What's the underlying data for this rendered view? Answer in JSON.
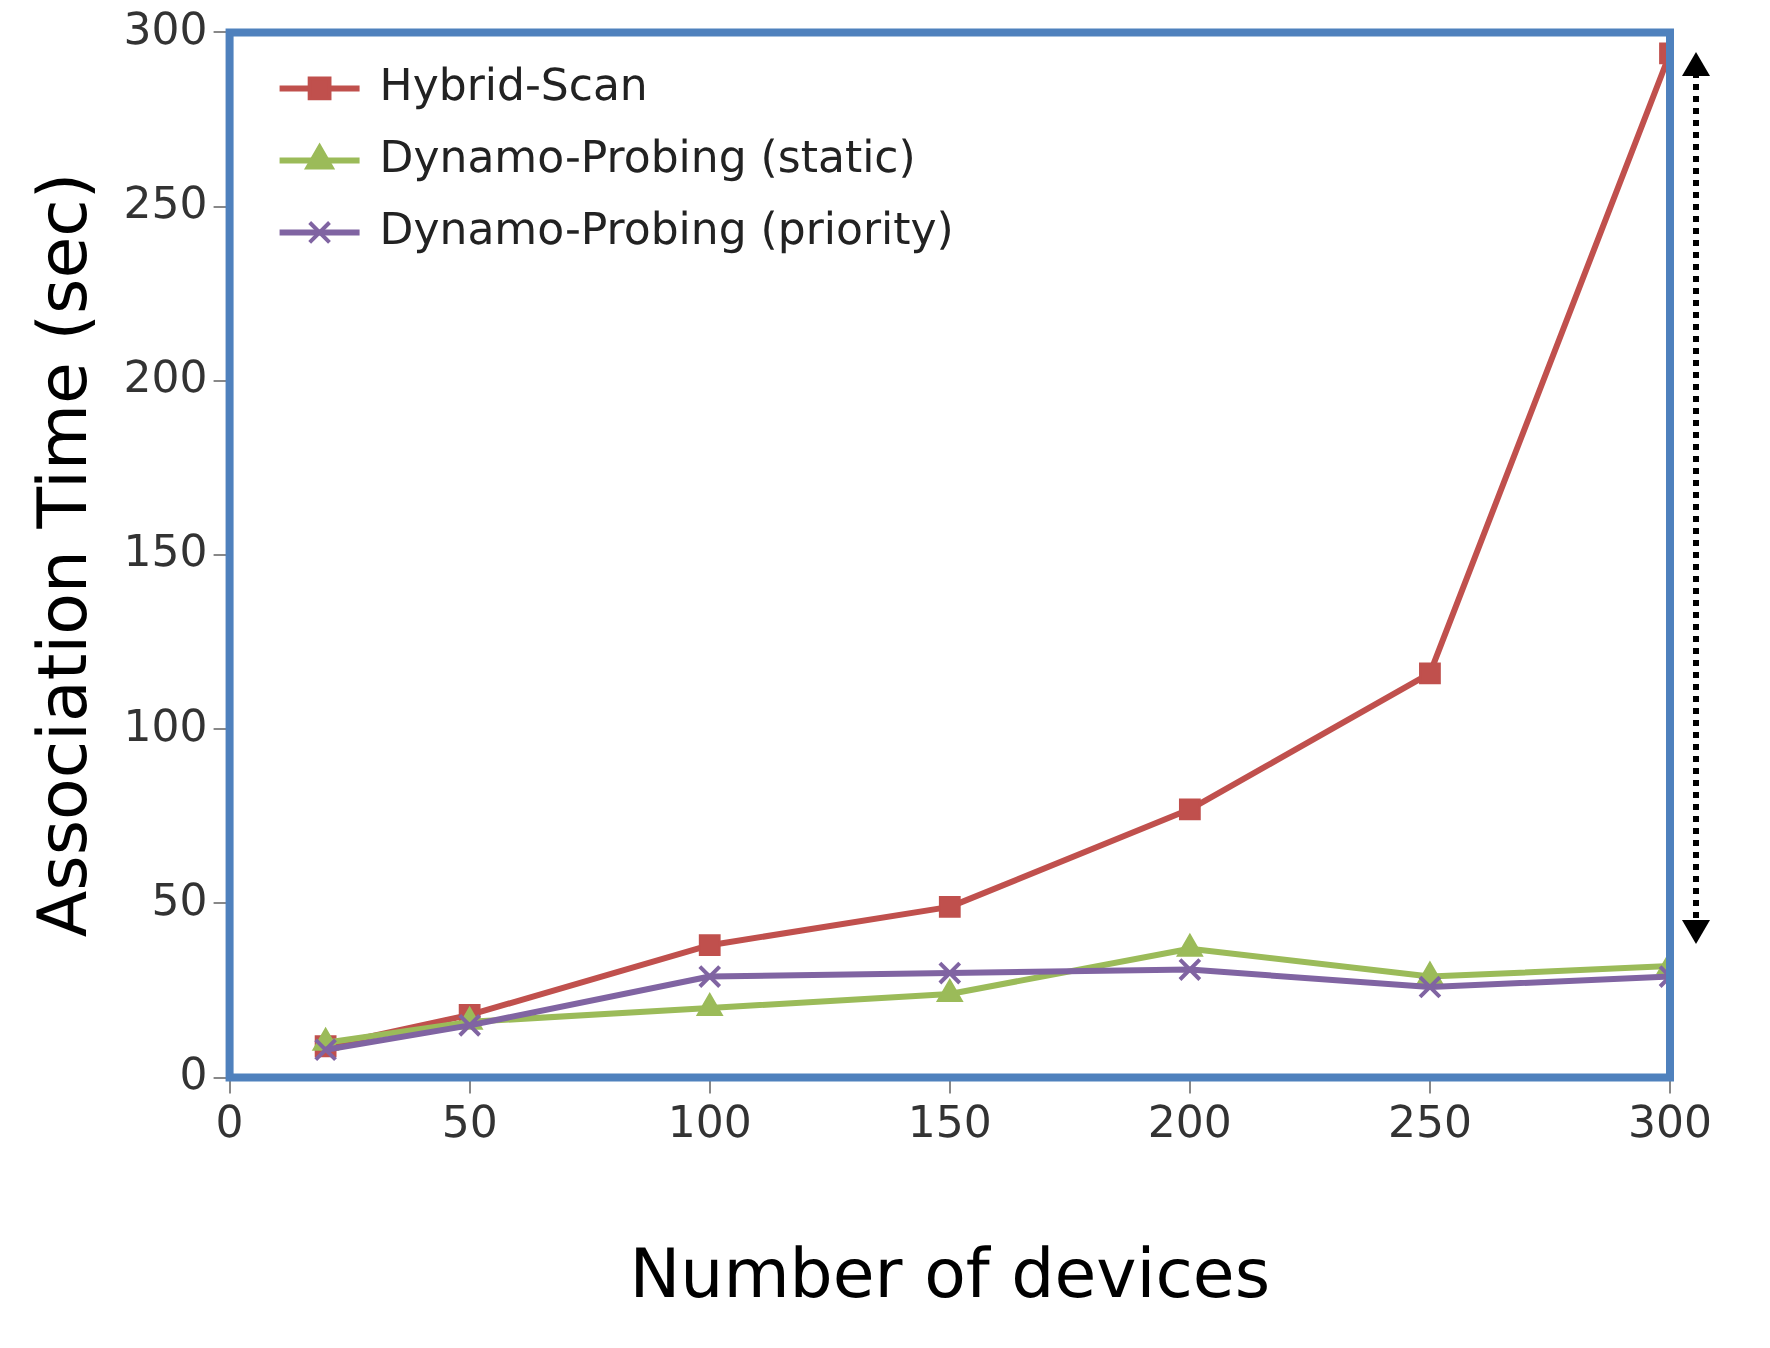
{
  "chart_data": {
    "type": "line",
    "xlabel": "Number of devices",
    "ylabel": "Association Time (sec)",
    "x": [
      20,
      50,
      100,
      150,
      200,
      250,
      300
    ],
    "series": [
      {
        "name": "Hybrid-Scan",
        "color": "#c0504d",
        "marker": "square",
        "values": [
          9,
          18,
          38,
          49,
          77,
          116,
          294
        ]
      },
      {
        "name": "Dynamo-Probing (static)",
        "color": "#9bbb59",
        "marker": "triangle",
        "values": [
          10,
          16,
          20,
          24,
          37,
          29,
          32
        ]
      },
      {
        "name": "Dynamo-Probing (priority)",
        "color": "#8064a2",
        "marker": "cross",
        "values": [
          8,
          15,
          29,
          30,
          31,
          26,
          29
        ]
      }
    ],
    "xlim": [
      0,
      300
    ],
    "xticks": [
      0,
      50,
      100,
      150,
      200,
      250,
      300
    ],
    "ylim": [
      0,
      300
    ],
    "yticks": [
      0,
      50,
      100,
      150,
      200,
      250,
      300
    ],
    "grid": false,
    "legend": "top left",
    "line_style": "solid"
  }
}
